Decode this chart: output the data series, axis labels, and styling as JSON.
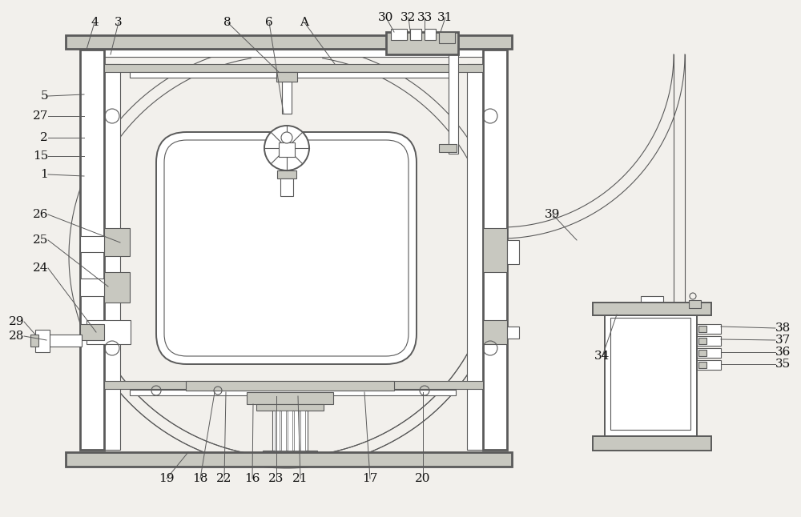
{
  "bg_color": "#f2f0ec",
  "lc": "#5a5a5a",
  "lc2": "#777777",
  "lw_main": 1.4,
  "lw_thin": 0.8,
  "lw_thick": 2.0,
  "fill_gray": "#c8c8c0",
  "fill_white": "#ffffff",
  "label_fs": 11,
  "labels_top": [
    [
      "4",
      118,
      618
    ],
    [
      "3",
      148,
      618
    ],
    [
      "8",
      284,
      618
    ],
    [
      "6",
      336,
      618
    ],
    [
      "A",
      382,
      618
    ],
    [
      "30",
      484,
      624
    ],
    [
      "32",
      510,
      624
    ],
    [
      "33",
      530,
      624
    ],
    [
      "31",
      554,
      624
    ]
  ],
  "labels_left": [
    [
      "5",
      62,
      533
    ],
    [
      "27",
      62,
      510
    ],
    [
      "2",
      62,
      484
    ],
    [
      "15",
      62,
      462
    ],
    [
      "1",
      62,
      438
    ],
    [
      "26",
      62,
      385
    ],
    [
      "25",
      62,
      355
    ],
    [
      "24",
      62,
      318
    ]
  ],
  "labels_bot_left": [
    [
      "29",
      30,
      420
    ],
    [
      "28",
      30,
      400
    ]
  ],
  "labels_right": [
    [
      "39",
      690,
      370
    ]
  ],
  "labels_right_dev": [
    [
      "34",
      750,
      458
    ],
    [
      "38",
      968,
      418
    ],
    [
      "37",
      968,
      435
    ],
    [
      "36",
      968,
      450
    ],
    [
      "35",
      968,
      465
    ]
  ],
  "labels_bottom": [
    [
      "19",
      208,
      26
    ],
    [
      "18",
      252,
      26
    ],
    [
      "22",
      282,
      26
    ],
    [
      "16",
      318,
      26
    ],
    [
      "23",
      348,
      26
    ],
    [
      "21",
      378,
      26
    ],
    [
      "17",
      468,
      26
    ],
    [
      "20",
      530,
      26
    ]
  ]
}
